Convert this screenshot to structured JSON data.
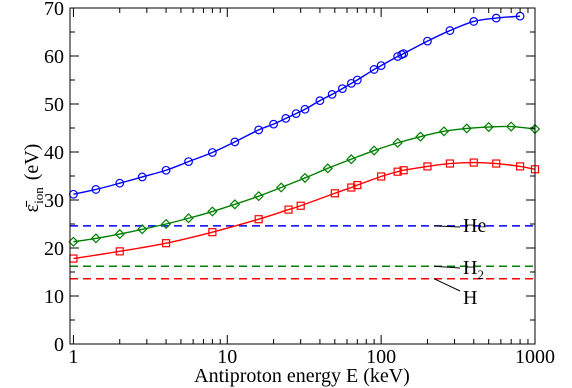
{
  "chart_data": {
    "type": "line",
    "xlabel": "Antiproton energy E (keV)",
    "ylabel_main": "ε̄",
    "ylabel_sub": "ion",
    "ylabel_unit": "(eV)",
    "xscale": "log",
    "xlim": [
      0.95,
      1000
    ],
    "ylim": [
      0,
      70
    ],
    "xticks": [
      1,
      10,
      100,
      1000
    ],
    "xtick_labels": [
      "1",
      "10",
      "100",
      "1000"
    ],
    "yticks": [
      0,
      10,
      20,
      30,
      40,
      50,
      60,
      70
    ],
    "ytick_labels": [
      "0",
      "10",
      "20",
      "30",
      "40",
      "50",
      "60",
      "70"
    ],
    "grid": false,
    "series": [
      {
        "color": "#0000ff",
        "marker": "circle",
        "x": [
          1,
          1.4,
          2,
          2.8,
          4,
          5.6,
          8,
          11.2,
          16,
          20,
          24,
          28,
          32,
          40,
          48,
          56,
          64,
          70,
          90,
          100,
          128,
          136,
          140,
          200,
          280,
          400,
          560,
          800
        ],
        "y": [
          31.2,
          32.2,
          33.5,
          34.8,
          36.2,
          38.0,
          39.9,
          42.1,
          44.6,
          45.8,
          47.0,
          48.0,
          48.9,
          50.7,
          52.0,
          53.2,
          54.3,
          55.0,
          57.2,
          58.0,
          59.9,
          60.3,
          60.5,
          63.1,
          65.3,
          67.2,
          67.9,
          68.3
        ]
      },
      {
        "color": "#008000",
        "marker": "diamond",
        "x": [
          1,
          1.4,
          2,
          2.8,
          4,
          5.6,
          8,
          11.2,
          16,
          22.4,
          32,
          45,
          64,
          90,
          128,
          180,
          256,
          360,
          500,
          700,
          1000
        ],
        "y": [
          21.3,
          22.0,
          22.9,
          23.9,
          25.0,
          26.2,
          27.6,
          29.1,
          30.8,
          32.6,
          34.6,
          36.6,
          38.5,
          40.3,
          41.9,
          43.2,
          44.3,
          44.9,
          45.2,
          45.3,
          44.8
        ]
      },
      {
        "color": "#ff0000",
        "marker": "square",
        "x": [
          1,
          2,
          4,
          8,
          16,
          25,
          30,
          50,
          64,
          70,
          100,
          128,
          140,
          200,
          280,
          400,
          560,
          800,
          1000
        ],
        "y": [
          17.8,
          19.3,
          21.0,
          23.3,
          26.0,
          28.0,
          28.8,
          31.4,
          32.6,
          33.1,
          34.9,
          35.9,
          36.2,
          37.0,
          37.6,
          37.8,
          37.6,
          37.0,
          36.4
        ]
      }
    ],
    "reference_lines": [
      {
        "label": "He",
        "value": 24.6,
        "color": "#0000ff"
      },
      {
        "label_main": "H",
        "label_sub": "2",
        "value": 16.2,
        "color": "#008000"
      },
      {
        "label": "H",
        "value": 13.6,
        "color": "#ff0000"
      }
    ]
  }
}
